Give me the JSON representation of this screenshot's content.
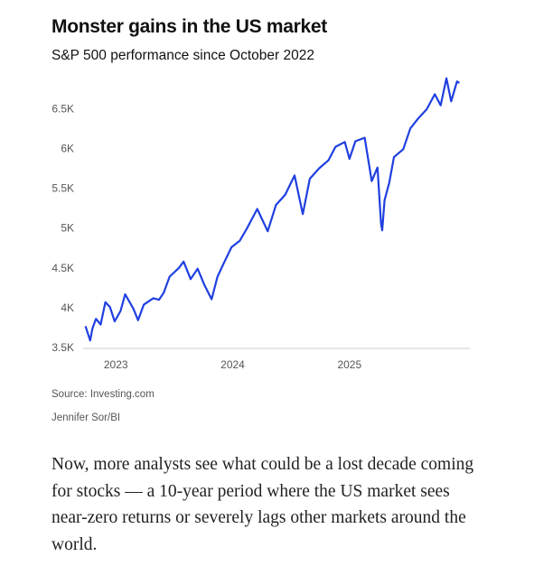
{
  "chart_data": {
    "type": "line",
    "title": "Monster gains in the US market",
    "subtitle": "S&P 500 performance since October 2022",
    "x": [
      2022.74,
      2022.78,
      2022.8,
      2022.83,
      2022.87,
      2022.91,
      2022.95,
      2022.99,
      2023.04,
      2023.08,
      2023.15,
      2023.19,
      2023.24,
      2023.32,
      2023.37,
      2023.41,
      2023.46,
      2023.54,
      2023.58,
      2023.64,
      2023.7,
      2023.76,
      2023.82,
      2023.87,
      2023.93,
      2023.99,
      2024.06,
      2024.12,
      2024.21,
      2024.3,
      2024.37,
      2024.45,
      2024.53,
      2024.6,
      2024.66,
      2024.74,
      2024.82,
      2024.88,
      2024.96,
      2025.0,
      2025.05,
      2025.13,
      2025.19,
      2025.24,
      2025.27,
      2025.28,
      2025.3,
      2025.34,
      2025.38,
      2025.46,
      2025.52,
      2025.59,
      2025.66,
      2025.73,
      2025.78,
      2025.83,
      2025.87,
      2025.92,
      2025.94
    ],
    "values": [
      3780,
      3600,
      3750,
      3872,
      3800,
      4080,
      4020,
      3840,
      3970,
      4180,
      4000,
      3855,
      4050,
      4130,
      4110,
      4200,
      4400,
      4510,
      4590,
      4370,
      4500,
      4290,
      4117,
      4400,
      4590,
      4770,
      4850,
      5000,
      5250,
      4970,
      5300,
      5430,
      5670,
      5186,
      5630,
      5760,
      5860,
      6030,
      6090,
      5880,
      6100,
      6144,
      5600,
      5770,
      5070,
      4982,
      5360,
      5580,
      5900,
      6000,
      6260,
      6390,
      6500,
      6690,
      6550,
      6890,
      6600,
      6850,
      6830
    ],
    "color": "#1f3fe0",
    "xlim": [
      2022.72,
      2026.03
    ],
    "xticks": [
      2023,
      2024,
      2025
    ],
    "ylim": [
      3500,
      7000
    ],
    "yticks": [
      {
        "value": 3500,
        "label": "3.5K"
      },
      {
        "value": 4000,
        "label": "4K"
      },
      {
        "value": 4500,
        "label": "4.5K"
      },
      {
        "value": 5000,
        "label": "5K"
      },
      {
        "value": 5500,
        "label": "5.5K"
      },
      {
        "value": 6000,
        "label": "6K"
      },
      {
        "value": 6500,
        "label": "6.5K"
      }
    ],
    "grid": false,
    "source": "Source: Investing.com",
    "credit": "Jennifer Sor/BI"
  },
  "body_text": "Now, more analysts see what could be a lost decade coming for stocks — a 10-year period where the US market sees near-zero returns or severely lags other markets around the world."
}
